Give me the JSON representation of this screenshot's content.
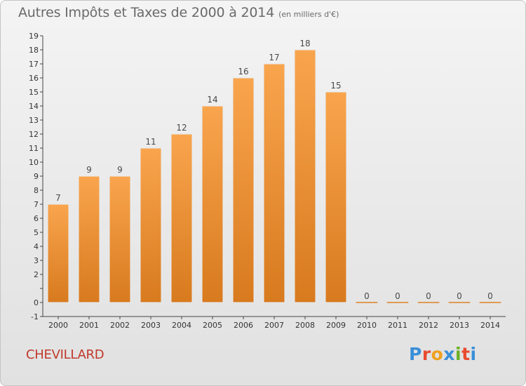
{
  "header": {
    "title": "Autres Impôts et Taxes de 2000 à 2014",
    "subtitle": "(en milliers d'€)"
  },
  "footer": {
    "commune": "CHEVILLARD",
    "brand": "Proxiti"
  },
  "colors": {
    "bar_top": "#f9a54e",
    "bar_bottom": "#d87a1e",
    "commune": "#c0392b",
    "logo_letters": [
      "#3a8fd8",
      "#e94b2f",
      "#f0a11e",
      "#3a8fd8",
      "#6ab023",
      "#e94b2f",
      "#3a8fd8"
    ]
  },
  "chart_data": {
    "type": "bar",
    "categories": [
      "2000",
      "2001",
      "2002",
      "2003",
      "2004",
      "2005",
      "2006",
      "2007",
      "2008",
      "2009",
      "2010",
      "2011",
      "2012",
      "2013",
      "2014"
    ],
    "values": [
      7,
      9,
      9,
      11,
      12,
      14,
      16,
      17,
      18,
      15,
      0,
      0,
      0,
      0,
      0
    ],
    "title": "Autres Impôts et Taxes de 2000 à 2014",
    "subtitle": "(en milliers d'€)",
    "xlabel": "",
    "ylabel": "",
    "ylim": [
      -1,
      19
    ],
    "yticks": [
      "-1",
      "0",
      "",
      "2",
      "3",
      "4",
      "5",
      "6",
      "7",
      "8",
      "9",
      "10",
      "11",
      "12",
      "13",
      "14",
      "15",
      "16",
      "17",
      "18",
      "19"
    ],
    "data_labels": [
      "7",
      "9",
      "9",
      "11",
      "12",
      "14",
      "16",
      "17",
      "18",
      "15",
      "0",
      "0",
      "0",
      "0",
      "0"
    ],
    "grid": false,
    "legend": "none"
  }
}
